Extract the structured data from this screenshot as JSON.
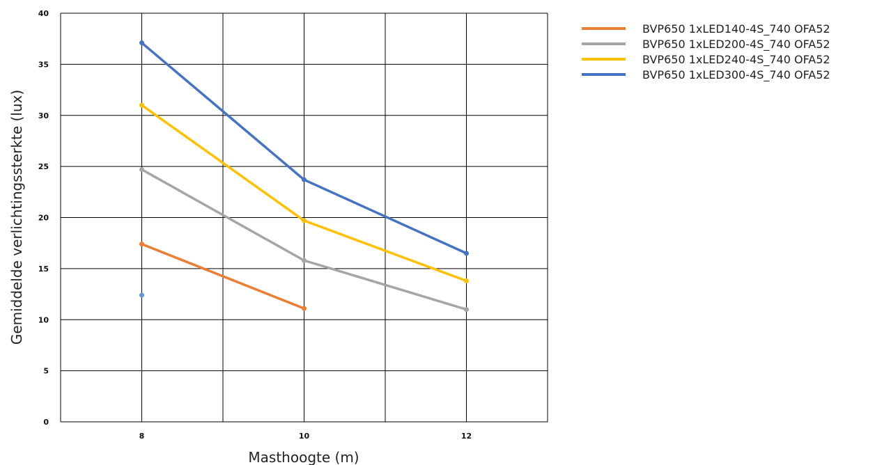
{
  "chart_data": {
    "type": "line",
    "xlabel": "Masthoogte (m)",
    "ylabel": "Gemiddelde verlichtingssterkte (lux)",
    "xlim": [
      7,
      13
    ],
    "ylim": [
      0,
      40
    ],
    "x_ticks": [
      8,
      10,
      12
    ],
    "y_ticks": [
      0,
      5,
      10,
      15,
      20,
      25,
      30,
      35,
      40
    ],
    "x_gridlines": [
      7,
      8,
      9,
      10,
      11,
      12,
      13
    ],
    "grid": true,
    "legend": "right",
    "series": [
      {
        "name": "BVP650 1xLED140-4S_740 OFA52",
        "color": "#ED7D31",
        "x": [
          8,
          10
        ],
        "values": [
          17.4,
          11.1
        ]
      },
      {
        "name": "BVP650 1xLED200-4S_740 OFA52",
        "color": "#A5A5A5",
        "x": [
          8,
          10,
          12
        ],
        "values": [
          24.7,
          15.8,
          11.0
        ]
      },
      {
        "name": "BVP650 1xLED240-4S_740 OFA52",
        "color": "#FFC000",
        "x": [
          8,
          10,
          12
        ],
        "values": [
          31.0,
          19.7,
          13.8
        ]
      },
      {
        "name": "BVP650 1xLED300-4S_740 OFA52",
        "color": "#4472C4",
        "x": [
          8,
          10,
          12
        ],
        "values": [
          37.1,
          23.7,
          16.5
        ]
      }
    ],
    "extra_points": [
      {
        "x": 8,
        "y": 12.4,
        "color": "#5B9BD5"
      }
    ]
  }
}
